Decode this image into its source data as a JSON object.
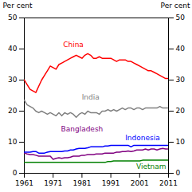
{
  "chart_data": {
    "type": "line",
    "ylabel": "Per cent",
    "y2label": "Per cent",
    "x": [
      1961,
      1962,
      1963,
      1964,
      1965,
      1966,
      1967,
      1968,
      1969,
      1970,
      1971,
      1972,
      1973,
      1974,
      1975,
      1976,
      1977,
      1978,
      1979,
      1980,
      1981,
      1982,
      1983,
      1984,
      1985,
      1986,
      1987,
      1988,
      1989,
      1990,
      1991,
      1992,
      1993,
      1994,
      1995,
      1996,
      1997,
      1998,
      1999,
      2000,
      2001,
      2002,
      2003,
      2004,
      2005,
      2006,
      2007,
      2008,
      2009,
      2010,
      2011
    ],
    "xlim": [
      1961,
      2011
    ],
    "xticks": [
      1961,
      1971,
      1981,
      1991,
      2001,
      2011
    ],
    "ylim": [
      0,
      50
    ],
    "yticks": [
      0,
      10,
      20,
      30,
      40,
      50
    ],
    "y2lim": [
      0,
      50
    ],
    "y2ticks": [
      0,
      10,
      20,
      30,
      40,
      50
    ],
    "grid": false,
    "series": [
      {
        "name": "China",
        "color": "#ff0000",
        "values": [
          30.0,
          28.5,
          27.0,
          26.5,
          26.0,
          28.0,
          30.0,
          31.5,
          33.0,
          34.5,
          34.0,
          33.5,
          35.0,
          35.5,
          36.0,
          36.5,
          37.0,
          37.5,
          38.0,
          37.5,
          37.0,
          38.0,
          38.5,
          38.0,
          37.0,
          37.0,
          37.5,
          37.0,
          37.0,
          37.0,
          37.0,
          36.5,
          36.0,
          36.5,
          36.5,
          36.5,
          36.0,
          36.0,
          35.5,
          35.0,
          34.5,
          34.0,
          33.5,
          33.0,
          33.0,
          32.5,
          32.0,
          31.5,
          31.0,
          30.5,
          30.5
        ]
      },
      {
        "name": "India",
        "color": "#808080",
        "values": [
          23.5,
          22.0,
          21.5,
          21.0,
          20.0,
          19.5,
          20.0,
          19.5,
          19.0,
          19.5,
          19.0,
          18.5,
          19.5,
          18.5,
          19.5,
          19.0,
          19.5,
          19.0,
          18.0,
          19.0,
          19.5,
          19.0,
          20.0,
          19.5,
          19.5,
          19.5,
          19.0,
          20.0,
          20.0,
          20.5,
          20.0,
          20.5,
          20.0,
          20.5,
          21.0,
          20.5,
          21.0,
          21.0,
          20.5,
          21.0,
          21.0,
          20.5,
          21.0,
          21.0,
          21.0,
          21.0,
          21.0,
          21.5,
          21.0,
          21.0,
          21.0
        ]
      },
      {
        "name": "Bangladesh",
        "color": "#800080",
        "values": [
          6.5,
          6.2,
          6.0,
          6.0,
          5.8,
          5.5,
          5.5,
          5.5,
          5.5,
          5.5,
          4.5,
          4.8,
          5.0,
          4.8,
          5.0,
          5.0,
          5.2,
          5.5,
          5.5,
          5.5,
          5.8,
          5.8,
          6.0,
          6.0,
          6.0,
          6.2,
          6.2,
          6.2,
          6.5,
          6.5,
          6.5,
          6.5,
          6.8,
          6.8,
          7.0,
          7.0,
          7.2,
          7.0,
          7.2,
          7.5,
          7.5,
          7.5,
          7.8,
          7.5,
          7.8,
          7.8,
          7.5,
          7.8,
          8.0,
          7.8,
          7.8
        ]
      },
      {
        "name": "Indonesia",
        "color": "#0000ff",
        "values": [
          6.8,
          6.8,
          6.8,
          7.0,
          7.0,
          6.5,
          6.5,
          6.5,
          6.8,
          7.0,
          7.0,
          7.0,
          7.0,
          7.0,
          7.2,
          7.2,
          7.5,
          7.5,
          7.8,
          8.0,
          8.0,
          8.0,
          8.2,
          8.5,
          8.5,
          8.5,
          8.5,
          8.5,
          8.8,
          8.8,
          9.0,
          9.0,
          9.0,
          9.0,
          9.0,
          9.0,
          9.0,
          8.5,
          9.0,
          9.0,
          9.0,
          9.0,
          9.0,
          9.0,
          9.0,
          9.0,
          9.0,
          9.0,
          9.0,
          9.0,
          9.0
        ]
      },
      {
        "name": "Vietnam",
        "color": "#008000",
        "values": [
          3.5,
          3.5,
          3.5,
          3.5,
          3.5,
          3.5,
          3.5,
          3.5,
          3.5,
          3.5,
          3.5,
          3.5,
          3.5,
          3.5,
          3.5,
          3.5,
          3.5,
          3.5,
          3.5,
          3.5,
          3.5,
          3.5,
          3.5,
          3.5,
          3.5,
          3.5,
          3.5,
          3.5,
          3.5,
          3.8,
          3.8,
          4.0,
          4.0,
          4.0,
          4.0,
          4.0,
          4.0,
          4.0,
          4.0,
          4.0,
          4.0,
          4.2,
          4.2,
          4.2,
          4.2,
          4.2,
          4.2,
          4.2,
          4.2,
          4.2,
          4.2
        ]
      }
    ],
    "annotations": [
      {
        "text": "China",
        "x": 1978,
        "y": 41.5,
        "color": "#ff0000"
      },
      {
        "text": "India",
        "x": 1984,
        "y": 24.5,
        "color": "#808080"
      },
      {
        "text": "Bangladesh",
        "x": 1981,
        "y": 14.2,
        "color": "#800080"
      },
      {
        "text": "Indonesia",
        "x": 2002,
        "y": 11.5,
        "color": "#0000ff"
      },
      {
        "text": "Vietnam",
        "x": 2005,
        "y": 2.2,
        "color": "#008000"
      }
    ]
  }
}
